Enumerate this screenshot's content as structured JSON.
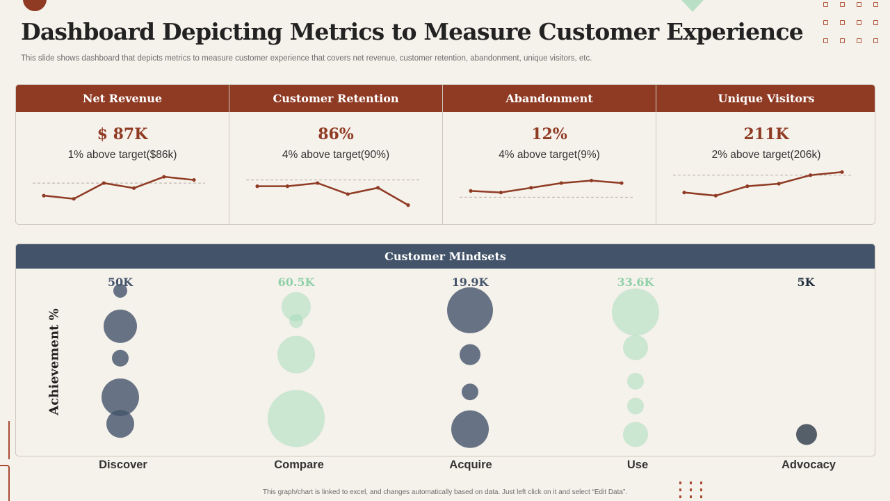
{
  "header": {
    "title": "Dashboard Depicting Metrics to Measure Customer Experience",
    "subtitle": "This slide shows dashboard that depicts metrics to measure customer experience that covers net revenue, customer retention, abandonment, unique visitors, etc."
  },
  "colors": {
    "brand": "#8f3b24",
    "panel_header": "#43546a",
    "bubble_dark": "#43546a",
    "bubble_green": "#a8dcbc",
    "advocacy": "#1f2d3d"
  },
  "kpis": [
    {
      "title": "Net Revenue",
      "value": "$ 87K",
      "note": "1% above target($86k)",
      "spark": [
        2,
        1,
        6,
        4.4,
        8,
        7
      ],
      "target": 6
    },
    {
      "title": "Customer Retention",
      "value": "86%",
      "note": "4% above target(90%)",
      "spark": [
        5,
        5,
        6,
        2.5,
        4.5,
        -1
      ],
      "target": 7
    },
    {
      "title": "Abandonment",
      "value": "12%",
      "note": "4% above target(9%)",
      "spark": [
        3.5,
        3,
        4.5,
        6,
        6.8,
        6
      ],
      "target": 1.5
    },
    {
      "title": "Unique Visitors",
      "value": "211K",
      "note": "2% above target(206k)",
      "spark": [
        3,
        2,
        5,
        5.8,
        8.5,
        9.5
      ],
      "target": 8.5
    }
  ],
  "mindsets": {
    "title": "Customer Mindsets",
    "ylabel": "Achievement %",
    "footer": "This graph/chart is linked to excel, and changes automatically based on data. Just left click on it and select “Edit Data”."
  },
  "chart_data": {
    "type": "scatter",
    "title": "Customer Mindsets",
    "xlabel": "",
    "ylabel": "Achievement %",
    "categories": [
      "Discover",
      "Compare",
      "Acquire",
      "Use",
      "Advocacy"
    ],
    "category_values": [
      "50K",
      "60.5K",
      "19.9K",
      "33.6K",
      "5K"
    ],
    "category_colors": [
      "#43546a",
      "#a8dcbc",
      "#43546a",
      "#a8dcbc",
      "#1f2d3d"
    ],
    "ylim": [
      0,
      100
    ],
    "points": [
      {
        "category": "Discover",
        "y": 93,
        "size": 10
      },
      {
        "category": "Discover",
        "y": 73,
        "size": 24
      },
      {
        "category": "Discover",
        "y": 55,
        "size": 12
      },
      {
        "category": "Discover",
        "y": 33,
        "size": 27
      },
      {
        "category": "Discover",
        "y": 18,
        "size": 20
      },
      {
        "category": "Compare",
        "y": 84,
        "size": 21
      },
      {
        "category": "Compare",
        "y": 76,
        "size": 10
      },
      {
        "category": "Compare",
        "y": 57,
        "size": 27
      },
      {
        "category": "Compare",
        "y": 21,
        "size": 41
      },
      {
        "category": "Acquire",
        "y": 82,
        "size": 33
      },
      {
        "category": "Acquire",
        "y": 57,
        "size": 15
      },
      {
        "category": "Acquire",
        "y": 36,
        "size": 12
      },
      {
        "category": "Acquire",
        "y": 15,
        "size": 27
      },
      {
        "category": "Use",
        "y": 81,
        "size": 34
      },
      {
        "category": "Use",
        "y": 61,
        "size": 18
      },
      {
        "category": "Use",
        "y": 42,
        "size": 12
      },
      {
        "category": "Use",
        "y": 28,
        "size": 12
      },
      {
        "category": "Use",
        "y": 12,
        "size": 18
      },
      {
        "category": "Advocacy",
        "y": 12,
        "size": 15
      }
    ],
    "grid": false,
    "legend": "none"
  }
}
